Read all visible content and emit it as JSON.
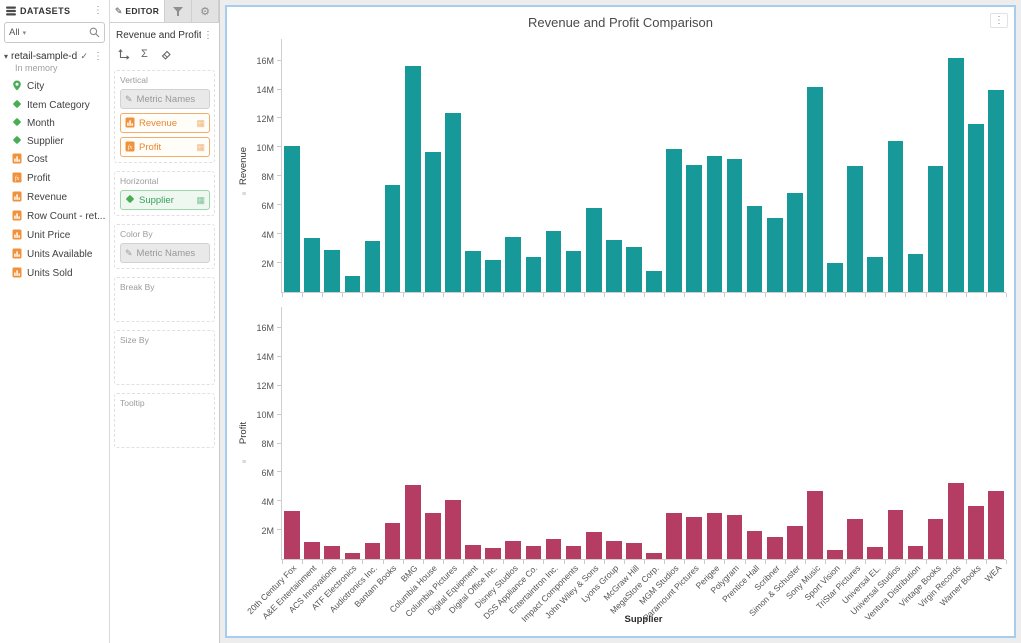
{
  "datasets_panel": {
    "title": "DATASETS",
    "header_icon": "datasets-stack-icon",
    "menu_icon": "kebab-menu-icon",
    "filter": {
      "all_label": "All",
      "caret_icon": "chevron-down-icon",
      "search_icon": "search-icon"
    },
    "dataset": {
      "name": "retail-sample-d...",
      "status": "In memory",
      "expander_icon": "caret-down-icon",
      "check_icon": "checkmark-icon",
      "menu_icon": "kebab-menu-icon"
    },
    "fields": [
      {
        "label": "City",
        "icon": "location-pin-icon"
      },
      {
        "label": "Item Category",
        "icon": "attribute-diamond-icon"
      },
      {
        "label": "Month",
        "icon": "attribute-diamond-icon"
      },
      {
        "label": "Supplier",
        "icon": "attribute-diamond-icon"
      },
      {
        "label": "Cost",
        "icon": "metric-doc-icon"
      },
      {
        "label": "Profit",
        "icon": "fx-metric-icon"
      },
      {
        "label": "Revenue",
        "icon": "metric-doc-icon"
      },
      {
        "label": "Row Count - ret...",
        "icon": "metric-doc-icon"
      },
      {
        "label": "Unit Price",
        "icon": "metric-doc-icon"
      },
      {
        "label": "Units Available",
        "icon": "metric-doc-icon"
      },
      {
        "label": "Units Sold",
        "icon": "metric-doc-icon"
      }
    ]
  },
  "editor_panel": {
    "tabs": {
      "editor_label": "EDITOR",
      "editor_icon": "pencil-icon",
      "filter_tab_icon": "funnel-icon",
      "settings_tab_icon": "gear-icon"
    },
    "visualization_title": "Revenue and Profit C...",
    "title_menu_icon": "kebab-menu-icon",
    "toolbar_icons": [
      "axes-icon",
      "sigma-icon",
      "eraser-icon"
    ],
    "zones": {
      "vertical": {
        "label": "Vertical",
        "chips": [
          {
            "label": "Metric Names",
            "kind": "gray",
            "icon": "pencil-icon"
          },
          {
            "label": "Revenue",
            "kind": "metric",
            "icon": "metric-doc-icon"
          },
          {
            "label": "Profit",
            "kind": "metric",
            "icon": "fx-metric-icon"
          }
        ]
      },
      "horizontal": {
        "label": "Horizontal",
        "chips": [
          {
            "label": "Supplier",
            "kind": "attr",
            "icon": "attribute-diamond-icon"
          }
        ]
      },
      "color_by": {
        "label": "Color By",
        "chips": [
          {
            "label": "Metric Names",
            "kind": "gray",
            "icon": "pencil-icon"
          }
        ]
      },
      "break_by": {
        "label": "Break By",
        "chips": []
      },
      "size_by": {
        "label": "Size By",
        "chips": []
      },
      "tooltip": {
        "label": "Tooltip",
        "chips": []
      }
    }
  },
  "chart": {
    "title": "Revenue and Profit Comparison",
    "menu_icon": "kebab-menu-icon",
    "border_color": "#A6CDEE"
  },
  "chart_data": {
    "type": "bar",
    "layout": "two vertically stacked bar panels sharing one category x-axis, no gridlines, legend off",
    "title": "Revenue and Profit Comparison",
    "xlabel": "Supplier",
    "categories": [
      "20th Century Fox",
      "A&E Entertainment",
      "ACS Innovations",
      "ATF Electronics",
      "Audiotronics Inc.",
      "Bantam Books",
      "BMG",
      "Columbia House",
      "Columbia Pictures",
      "Digital Equipment",
      "Digital Office Inc.",
      "Disney Studios",
      "DSS Appliance Co.",
      "Entertaintron Inc.",
      "Impact Components",
      "John Wiley & Sons",
      "Lyons Group",
      "McGraw Hill",
      "MegaStore Corp.",
      "MGM Studios",
      "Paramount Pictures",
      "Perigee",
      "Polygram",
      "Prentice Hall",
      "Scribner",
      "Simon & Schuster",
      "Sony Music",
      "Sport Vision",
      "TriStar Pictures",
      "Universal EL.",
      "Universal Studios",
      "Ventura Distribution",
      "Vintage Books",
      "Virgin Records",
      "Warner Books",
      "WEA"
    ],
    "series": [
      {
        "name": "Revenue",
        "color": "#17999A",
        "values_m": [
          10.1,
          3.7,
          2.9,
          1.1,
          3.5,
          7.4,
          15.6,
          9.7,
          12.4,
          2.8,
          2.2,
          3.8,
          2.4,
          4.2,
          2.8,
          5.8,
          3.6,
          3.1,
          1.4,
          9.9,
          8.8,
          9.4,
          9.2,
          5.9,
          5.1,
          6.8,
          14.2,
          2.0,
          8.7,
          2.4,
          10.4,
          2.6,
          8.7,
          16.2,
          11.6,
          14.0
        ]
      },
      {
        "name": "Profit",
        "color": "#B53D63",
        "values_m": [
          3.3,
          1.2,
          0.9,
          0.4,
          1.1,
          2.5,
          5.1,
          3.2,
          4.1,
          0.95,
          0.75,
          1.25,
          0.9,
          1.4,
          0.9,
          1.9,
          1.25,
          1.1,
          0.45,
          3.2,
          2.9,
          3.2,
          3.05,
          1.95,
          1.55,
          2.3,
          4.7,
          0.6,
          2.8,
          0.8,
          3.4,
          0.9,
          2.8,
          5.3,
          3.7,
          4.7
        ]
      }
    ],
    "y_ticks": [
      "2M",
      "4M",
      "6M",
      "8M",
      "10M",
      "12M",
      "14M",
      "16M"
    ],
    "y_tick_values_m": [
      2,
      4,
      6,
      8,
      10,
      12,
      14,
      16
    ],
    "ymax_m": 17.5,
    "ylim": [
      0,
      17500000
    ]
  }
}
